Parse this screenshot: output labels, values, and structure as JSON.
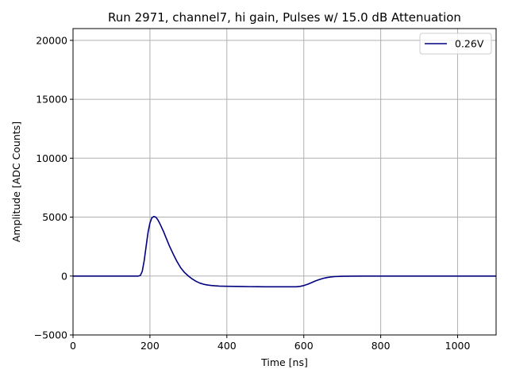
{
  "chart_data": {
    "type": "line",
    "title": "Run 2971, channel7, hi gain, Pulses w/ 15.0 dB Attenuation",
    "xlabel": "Time [ns]",
    "ylabel": "Amplitude [ADC Counts]",
    "xlim": [
      0,
      1100
    ],
    "ylim": [
      -5000,
      21000
    ],
    "xticks": [
      0,
      200,
      400,
      600,
      800,
      1000
    ],
    "xtick_labels": [
      "0",
      "200",
      "400",
      "600",
      "800",
      "1000"
    ],
    "yticks": [
      -5000,
      0,
      5000,
      10000,
      15000,
      20000
    ],
    "ytick_labels": [
      "−5000",
      "0",
      "5000",
      "10000",
      "15000",
      "20000"
    ],
    "grid": true,
    "legend_position": "top-right",
    "series": [
      {
        "name": "0.26V",
        "color": "#000080",
        "x": [
          0,
          50,
          100,
          150,
          170,
          175,
          180,
          185,
          190,
          195,
          200,
          205,
          210,
          215,
          220,
          225,
          230,
          235,
          240,
          245,
          250,
          260,
          270,
          280,
          290,
          300,
          310,
          320,
          330,
          340,
          350,
          360,
          370,
          380,
          400,
          420,
          440,
          460,
          480,
          500,
          520,
          540,
          560,
          580,
          590,
          600,
          610,
          620,
          630,
          640,
          650,
          660,
          670,
          680,
          700,
          720,
          750,
          800,
          850,
          900,
          950,
          1000,
          1050,
          1100
        ],
        "y": [
          0,
          0,
          0,
          0,
          0,
          50,
          400,
          1300,
          2500,
          3700,
          4500,
          4950,
          5050,
          5000,
          4800,
          4500,
          4150,
          3800,
          3400,
          3000,
          2600,
          1900,
          1250,
          700,
          300,
          0,
          -250,
          -450,
          -600,
          -700,
          -760,
          -800,
          -830,
          -850,
          -870,
          -880,
          -890,
          -900,
          -905,
          -910,
          -910,
          -915,
          -915,
          -910,
          -880,
          -810,
          -700,
          -560,
          -420,
          -300,
          -200,
          -130,
          -80,
          -50,
          -20,
          -10,
          0,
          0,
          0,
          0,
          0,
          0,
          0,
          0
        ]
      }
    ]
  }
}
